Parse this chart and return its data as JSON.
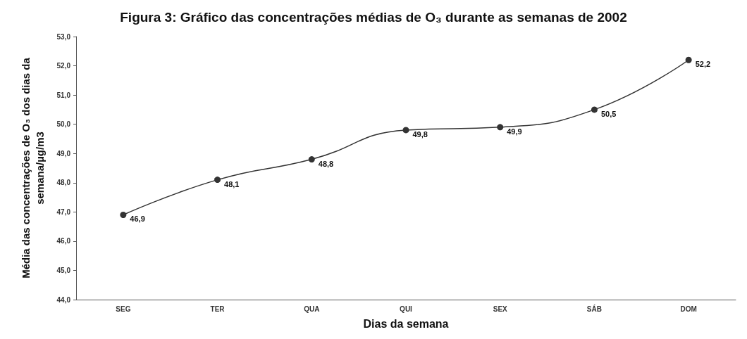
{
  "chart_data": {
    "type": "line",
    "title": "Figura 3: Gráfico das concentrações médias de O₃ durante as semanas de 2002",
    "xlabel": "Dias da semana",
    "ylabel": "Média das concentrações de O₃ dos dias da semana/µg/m3",
    "categories": [
      "SEG",
      "TER",
      "QUA",
      "QUI",
      "SEX",
      "SÁB",
      "DOM"
    ],
    "series": [
      {
        "color": "#333333",
        "values": [
          46.9,
          48.1,
          48.8,
          49.8,
          49.9,
          50.5,
          52.2
        ],
        "value_labels": [
          "46,9",
          "48,1",
          "48,8",
          "49,8",
          "49,9",
          "50,5",
          "52,2"
        ]
      }
    ],
    "ylim": [
      44,
      53
    ],
    "yticks": [
      {
        "value": 44,
        "label": "44,0"
      },
      {
        "value": 45,
        "label": "45,0"
      },
      {
        "value": 46,
        "label": "46,0"
      },
      {
        "value": 47,
        "label": "47,0"
      },
      {
        "value": 48,
        "label": "48,0"
      },
      {
        "value": 49,
        "label": "49,0"
      },
      {
        "value": 50,
        "label": "50,0"
      },
      {
        "value": 51,
        "label": "51,0"
      },
      {
        "value": 52,
        "label": "52,0"
      },
      {
        "value": 53,
        "label": "53,0"
      }
    ],
    "grid": false,
    "marker": "circle",
    "line_style": "solid"
  }
}
